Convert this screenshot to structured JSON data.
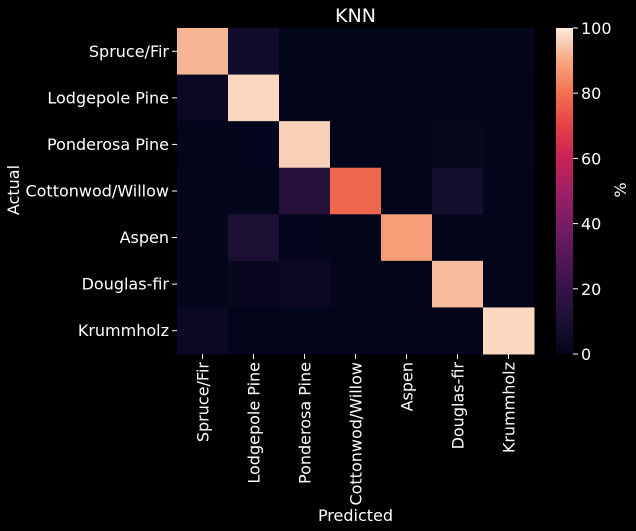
{
  "chart_data": {
    "type": "heatmap",
    "title": "KNN",
    "xlabel": "Predicted",
    "ylabel": "Actual",
    "colorbar_label": "%",
    "colormap": "rocket",
    "background": "#000000",
    "x_categories": [
      "Spruce/Fir",
      "Lodgepole Pine",
      "Ponderosa Pine",
      "Cottonwod/Willow",
      "Aspen",
      "Douglas-fir",
      "Krummholz"
    ],
    "y_categories": [
      "Spruce/Fir",
      "Lodgepole Pine",
      "Ponderosa Pine",
      "Cottonwod/Willow",
      "Aspen",
      "Douglas-fir",
      "Krummholz"
    ],
    "values": [
      [
        92,
        6,
        0,
        0,
        0,
        0,
        0.5
      ],
      [
        3,
        97,
        0,
        0,
        0,
        0,
        0
      ],
      [
        0.3,
        1,
        96,
        0,
        0,
        1.5,
        0.5
      ],
      [
        0.5,
        0.5,
        14,
        78,
        0,
        8,
        0
      ],
      [
        0.5,
        10,
        1,
        0,
        88,
        0.5,
        0
      ],
      [
        0.5,
        2,
        4,
        0.5,
        0,
        93,
        0
      ],
      [
        3,
        0,
        0,
        0,
        0,
        0,
        97
      ]
    ],
    "vmin": 0,
    "vmax": 100,
    "colorbar_ticks": [
      0,
      20,
      40,
      60,
      80,
      100
    ]
  }
}
